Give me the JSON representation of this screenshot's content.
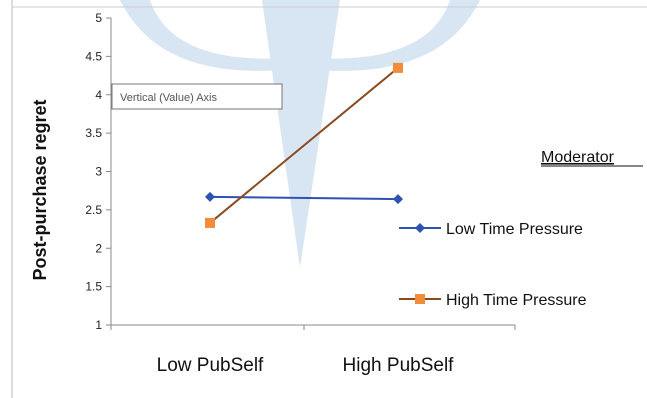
{
  "chart_data": {
    "type": "line",
    "categories": [
      "Low PubSelf",
      "High PubSelf"
    ],
    "series": [
      {
        "name": "Low Time Pressure",
        "values": [
          2.67,
          2.64
        ],
        "color": "#2E52B0",
        "marker": "diamond"
      },
      {
        "name": "High Time Pressure",
        "values": [
          2.33,
          4.35
        ],
        "color": "#8A4A20",
        "marker_color": "#F08C3A",
        "marker": "square"
      }
    ],
    "yticks": [
      1,
      1.5,
      2,
      2.5,
      3,
      3.5,
      4,
      4.5,
      5
    ],
    "ylim": [
      1,
      5
    ],
    "ylabel": "Post-purchase regret",
    "xlabel": "",
    "legend_title": "Moderator",
    "legend_position": "right",
    "grid": false,
    "tooltip": "Vertical (Value) Axis"
  },
  "background": {
    "watermark_color": "#D8E6F4"
  }
}
